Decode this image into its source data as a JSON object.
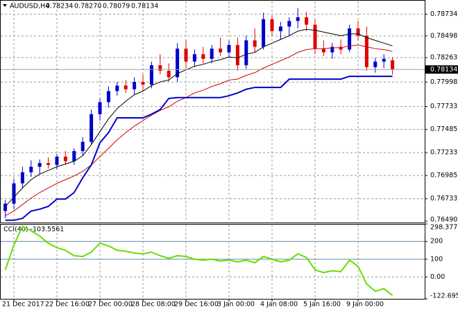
{
  "header": {
    "symbol": "AUDUSD,H4",
    "ohlc": [
      "0.78234",
      "0.78270",
      "0.78079",
      "0.78134"
    ]
  },
  "chart_data": [
    {
      "type": "candlestick",
      "up_color": "#0000cd",
      "down_color": "#e00000",
      "grid": true,
      "ylim": [
        0.76475,
        0.7888
      ],
      "yticks": [
        0.78734,
        0.78498,
        0.78263,
        0.77998,
        0.77733,
        0.77485,
        0.77233,
        0.76985,
        0.76733,
        {
          "value": 0.7649,
          "label": "0.76490"
        }
      ],
      "open": [
        0.766,
        0.7668,
        0.769,
        0.7702,
        0.7708,
        0.7712,
        0.771,
        0.7719,
        0.7714,
        0.7725,
        0.7735,
        0.7765,
        0.7778,
        0.779,
        0.7796,
        0.7792,
        0.78,
        0.7797,
        0.7818,
        0.7812,
        0.7805,
        0.7836,
        0.7822,
        0.783,
        0.7825,
        0.7836,
        0.7832,
        0.784,
        0.7818,
        0.7845,
        0.7838,
        0.7868,
        0.7855,
        0.786,
        0.7866,
        0.787,
        0.7862,
        0.7836,
        0.7832,
        0.7838,
        0.7835,
        0.7858,
        0.785,
        0.7816,
        0.7822,
        0.78234
      ],
      "high": [
        0.7672,
        0.7695,
        0.7708,
        0.7715,
        0.7716,
        0.7718,
        0.7722,
        0.7725,
        0.7728,
        0.774,
        0.777,
        0.7782,
        0.7795,
        0.78,
        0.7802,
        0.7805,
        0.7808,
        0.7822,
        0.783,
        0.782,
        0.7842,
        0.7845,
        0.7835,
        0.7838,
        0.784,
        0.7848,
        0.7845,
        0.7848,
        0.785,
        0.7858,
        0.7875,
        0.7872,
        0.7865,
        0.787,
        0.788,
        0.7876,
        0.7868,
        0.7845,
        0.7842,
        0.7846,
        0.7862,
        0.7866,
        0.786,
        0.7826,
        0.783,
        0.7827
      ],
      "low": [
        0.7652,
        0.7662,
        0.7685,
        0.7697,
        0.77,
        0.7706,
        0.7705,
        0.771,
        0.771,
        0.772,
        0.7732,
        0.7758,
        0.7772,
        0.7785,
        0.7788,
        0.7786,
        0.779,
        0.7793,
        0.7808,
        0.78,
        0.78,
        0.7815,
        0.7816,
        0.782,
        0.782,
        0.7828,
        0.7826,
        0.7812,
        0.7814,
        0.7832,
        0.7835,
        0.785,
        0.7846,
        0.785,
        0.7858,
        0.7855,
        0.783,
        0.7828,
        0.7825,
        0.783,
        0.7832,
        0.7845,
        0.7812,
        0.781,
        0.7815,
        0.78079
      ],
      "close": [
        0.7668,
        0.769,
        0.7702,
        0.7708,
        0.7712,
        0.771,
        0.7719,
        0.7714,
        0.7725,
        0.7735,
        0.7765,
        0.7778,
        0.779,
        0.7796,
        0.7792,
        0.78,
        0.7797,
        0.7818,
        0.7812,
        0.7805,
        0.7836,
        0.7822,
        0.783,
        0.7825,
        0.7836,
        0.7832,
        0.784,
        0.7818,
        0.7845,
        0.7838,
        0.7868,
        0.7855,
        0.786,
        0.7866,
        0.787,
        0.7862,
        0.7836,
        0.7832,
        0.7838,
        0.7835,
        0.7858,
        0.785,
        0.7816,
        0.7822,
        0.7825,
        0.78134
      ],
      "lines": [
        {
          "color": "#000000",
          "values": [
            0.7665,
            0.7675,
            0.7685,
            0.7694,
            0.77,
            0.7704,
            0.7708,
            0.7711,
            0.7714,
            0.772,
            0.7732,
            0.7746,
            0.776,
            0.7771,
            0.7779,
            0.7786,
            0.779,
            0.7796,
            0.78,
            0.7802,
            0.7809,
            0.7813,
            0.7817,
            0.7819,
            0.7822,
            0.7824,
            0.7827,
            0.7826,
            0.783,
            0.7832,
            0.7838,
            0.7842,
            0.7846,
            0.785,
            0.7855,
            0.7857,
            0.7856,
            0.7854,
            0.7852,
            0.785,
            0.7852,
            0.7852,
            0.7848,
            0.7845,
            0.7842,
            0.7839
          ]
        },
        {
          "color": "#cc0000",
          "values": [
            0.7655,
            0.766,
            0.7667,
            0.7674,
            0.768,
            0.7685,
            0.769,
            0.7694,
            0.7698,
            0.7703,
            0.771,
            0.7719,
            0.7728,
            0.7737,
            0.7745,
            0.7752,
            0.7758,
            0.7764,
            0.7769,
            0.7773,
            0.7779,
            0.7783,
            0.7788,
            0.7791,
            0.7795,
            0.7798,
            0.7802,
            0.7803,
            0.7807,
            0.781,
            0.7815,
            0.7819,
            0.7823,
            0.7827,
            0.7832,
            0.7835,
            0.7836,
            0.7836,
            0.7837,
            0.7837,
            0.7839,
            0.784,
            0.7838,
            0.7836,
            0.7835,
            0.7833
          ]
        },
        {
          "color": "#0000cc",
          "values": [
            0.765,
            0.765,
            0.7652,
            0.766,
            0.7662,
            0.7665,
            0.7673,
            0.7673,
            0.768,
            0.7696,
            0.771,
            0.7734,
            0.7745,
            0.7761,
            0.7761,
            0.7761,
            0.7761,
            0.7765,
            0.777,
            0.7782,
            0.7783,
            0.7783,
            0.7783,
            0.7783,
            0.7783,
            0.7783,
            0.7785,
            0.7788,
            0.7792,
            0.7794,
            0.7794,
            0.7794,
            0.7794,
            0.7803,
            0.7803,
            0.7803,
            0.7803,
            0.7803,
            0.7803,
            0.7803,
            0.7806,
            0.7806,
            0.7806,
            0.7806,
            0.7806,
            0.7806
          ]
        }
      ]
    },
    {
      "type": "line",
      "title": "CCI(40) -103.5561",
      "color": "#66dd00",
      "levels_color": "#5f86a6",
      "levels": [
        200,
        100
      ],
      "grid": true,
      "ylim": [
        -122.6958,
        298.3773
      ],
      "yticks": [
        298.3773,
        200,
        100,
        {
          "value": 0,
          "label": "0.00"
        },
        -122.6958
      ],
      "categories": [
        null,
        "21 Dec 2017",
        null,
        null,
        null,
        null,
        "22 Dec 16:00",
        null,
        null,
        null,
        null,
        "27 Dec 00:00",
        null,
        null,
        null,
        null,
        "28 Dec 08:00",
        null,
        null,
        null,
        null,
        "29 Dec 16:00",
        null,
        null,
        null,
        null,
        "3 Jan 00:00",
        null,
        null,
        null,
        null,
        "4 Jan 08:00",
        null,
        null,
        null,
        null,
        "5 Jan 16:00",
        null,
        null,
        null,
        null,
        "9 Jan 00:00",
        null,
        null,
        null,
        null
      ],
      "values": [
        40,
        180,
        285,
        260,
        230,
        190,
        165,
        150,
        120,
        115,
        140,
        190,
        175,
        150,
        145,
        135,
        130,
        140,
        120,
        105,
        120,
        115,
        100,
        95,
        100,
        90,
        95,
        85,
        95,
        80,
        115,
        100,
        85,
        95,
        130,
        110,
        40,
        25,
        35,
        30,
        95,
        60,
        -40,
        -80,
        -65,
        -103.5561
      ]
    }
  ]
}
